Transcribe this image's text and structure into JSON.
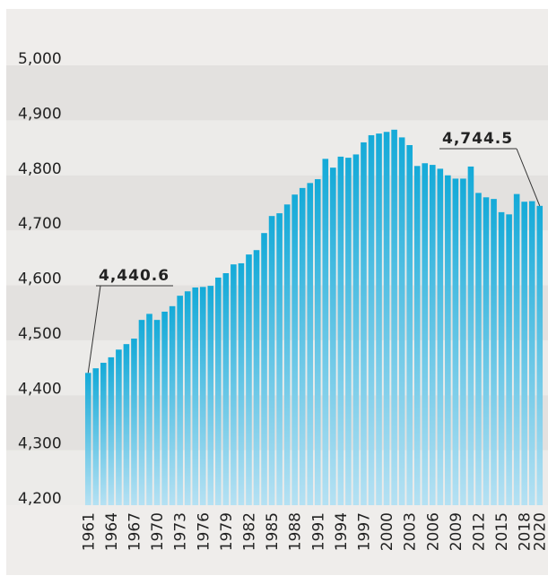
{
  "chart_data": {
    "type": "bar",
    "categories": [
      "1961",
      null,
      null,
      "1964",
      null,
      null,
      "1967",
      null,
      null,
      "1970",
      null,
      null,
      "1973",
      null,
      null,
      "1976",
      null,
      null,
      "1979",
      null,
      null,
      "1982",
      null,
      null,
      "1985",
      null,
      null,
      "1988",
      null,
      null,
      "1991",
      null,
      null,
      "1994",
      null,
      null,
      "1997",
      null,
      null,
      "2000",
      null,
      null,
      "2003",
      null,
      null,
      "2006",
      null,
      null,
      "2009",
      null,
      null,
      "2012",
      null,
      null,
      "2015",
      null,
      null,
      "2018",
      null,
      "2020"
    ],
    "values": [
      4440.6,
      4449,
      4459,
      4469,
      4483,
      4493,
      4503,
      4537,
      4548,
      4537,
      4552,
      4562,
      4581,
      4589,
      4596,
      4597,
      4599,
      4614,
      4622,
      4638,
      4640,
      4656,
      4664,
      4695,
      4726,
      4731,
      4747,
      4765,
      4777,
      4786,
      4793,
      4830,
      4814,
      4834,
      4832,
      4838,
      4860,
      4873,
      4876,
      4879,
      4883,
      4869,
      4855,
      4817,
      4822,
      4819,
      4812,
      4800,
      4794,
      4794,
      4816,
      4768,
      4760,
      4757,
      4733,
      4729,
      4766,
      4752,
      4753,
      4744.5
    ],
    "value_labels": [
      "4,440.6",
      null,
      null,
      null,
      null,
      null,
      null,
      null,
      null,
      null,
      null,
      null,
      null,
      null,
      null,
      null,
      null,
      null,
      null,
      null,
      null,
      null,
      null,
      null,
      null,
      null,
      null,
      null,
      null,
      null,
      null,
      null,
      null,
      null,
      null,
      null,
      null,
      null,
      null,
      null,
      null,
      null,
      null,
      null,
      null,
      null,
      null,
      null,
      null,
      null,
      null,
      null,
      null,
      null,
      null,
      null,
      null,
      null,
      null,
      "4,744.5"
    ],
    "color": "#1ab0da",
    "ylim": [
      4200,
      5000
    ],
    "yticks": [
      {
        "value": 4200,
        "label": "4,200"
      },
      {
        "value": 4300,
        "label": "4,300"
      },
      {
        "value": 4400,
        "label": "4,400"
      },
      {
        "value": 4500,
        "label": "4,500"
      },
      {
        "value": 4600,
        "label": "4,600"
      },
      {
        "value": 4700,
        "label": "4,700"
      },
      {
        "value": 4800,
        "label": "4,800"
      },
      {
        "value": 4900,
        "label": "4,900"
      },
      {
        "value": 5000,
        "label": "5,000"
      }
    ],
    "grid": true
  }
}
